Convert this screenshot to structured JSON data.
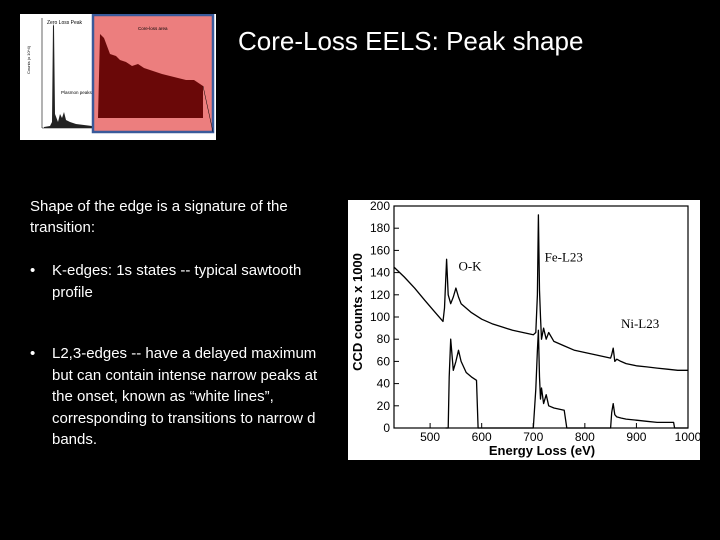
{
  "slide": {
    "title": "Core-Loss EELS: Peak shape",
    "intro": "Shape of the edge is a signature of the transition:",
    "bullets": [
      "K-edges: 1s states -- typical sawtooth profile",
      "L2,3-edges -- have a delayed maximum but can contain intense narrow peaks at the onset, known as “white lines”, corresponding to transitions to narrow d bands."
    ]
  },
  "thumbnail": {
    "zero_loss_label": "Zero Loss Peak",
    "core_loss_label": "Core-loss area",
    "plasmon_label": "Plasmon peaks",
    "y_axis_label": "Counts (x 10^4)",
    "highlight_color": "#e87878",
    "frame_color": "#3a5a9a"
  },
  "chart_data": {
    "type": "line",
    "xlabel": "Energy Loss (eV)",
    "ylabel": "CCD counts  x 1000",
    "xlim": [
      430,
      1000
    ],
    "ylim": [
      0,
      200
    ],
    "x_ticks": [
      500,
      600,
      700,
      800,
      900,
      1000
    ],
    "y_ticks": [
      0,
      20,
      40,
      60,
      80,
      100,
      120,
      140,
      160,
      180,
      200
    ],
    "annotations": [
      {
        "text": "O-K",
        "x": 555,
        "y": 142
      },
      {
        "text": "Fe-L23",
        "x": 722,
        "y": 150
      },
      {
        "text": "Ni-L23",
        "x": 870,
        "y": 90
      }
    ],
    "series": [
      {
        "x": [
          430,
          450,
          470,
          490,
          510,
          525,
          528,
          532,
          535,
          540,
          545,
          550,
          555,
          560,
          570,
          580,
          600,
          620,
          640,
          660,
          680,
          700,
          705,
          708,
          710,
          712,
          714,
          716,
          720,
          725,
          730,
          740,
          760,
          780,
          800,
          820,
          840,
          850,
          852,
          855,
          858,
          862,
          870,
          880,
          900,
          920,
          940,
          960,
          980,
          1000
        ],
        "y": [
          145,
          136,
          126,
          115,
          104,
          96,
          108,
          152,
          120,
          112,
          118,
          126,
          118,
          112,
          108,
          104,
          98,
          94,
          91,
          88,
          86,
          84,
          86,
          120,
          192,
          124,
          100,
          80,
          90,
          80,
          86,
          78,
          74,
          70,
          68,
          66,
          64,
          63,
          66,
          72,
          60,
          62,
          60,
          58,
          56,
          55,
          54,
          53,
          52,
          52
        ]
      },
      {
        "x": [
          530,
          535,
          537,
          540,
          545,
          550,
          555,
          560,
          570,
          580,
          590,
          593,
          600,
          620,
          640,
          660,
          680,
          700,
          705,
          708,
          710,
          712,
          714,
          716,
          720,
          725,
          730,
          740,
          760,
          765,
          770,
          800,
          820,
          840,
          850,
          852,
          855,
          858,
          862,
          870,
          880,
          900,
          920,
          940,
          960,
          972,
          974,
          980,
          1000
        ],
        "y": [
          0,
          0,
          46,
          80,
          52,
          60,
          70,
          60,
          50,
          46,
          43,
          0,
          0,
          0,
          0,
          0,
          0,
          0,
          35,
          70,
          88,
          46,
          26,
          36,
          22,
          30,
          20,
          18,
          16,
          0,
          0,
          0,
          0,
          0,
          0,
          14,
          22,
          12,
          10,
          9,
          8,
          7,
          6,
          5,
          5,
          5,
          0,
          0,
          0
        ]
      }
    ]
  }
}
